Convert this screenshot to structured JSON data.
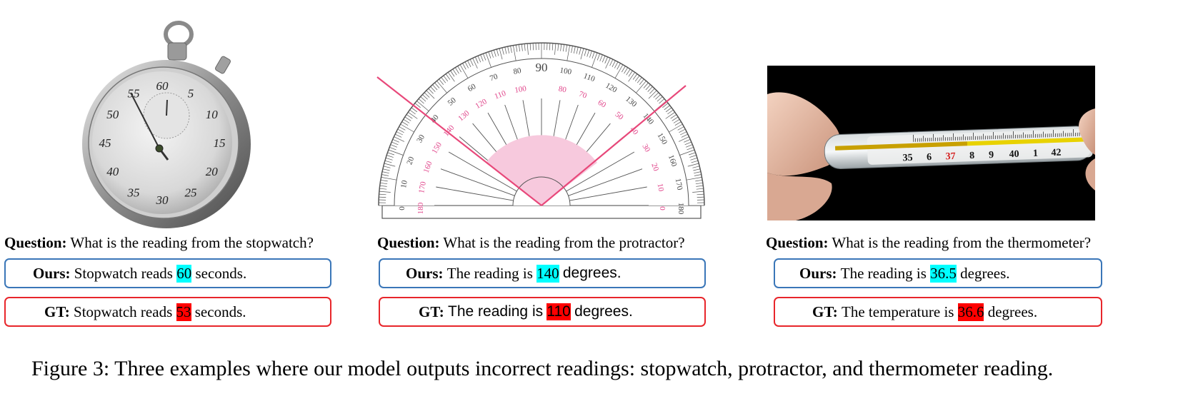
{
  "examples": [
    {
      "question_label": "Question:",
      "question": "What is the reading from the stopwatch?",
      "ours": {
        "label": "Ours:",
        "before": "Stopwatch reads",
        "value": "60",
        "after": "seconds."
      },
      "gt": {
        "label": "GT:",
        "before": "Stopwatch reads",
        "value": "53",
        "after": "seconds."
      },
      "dial_numbers": [
        "55",
        "60",
        "5",
        "10",
        "15",
        "20",
        "25",
        "30",
        "35",
        "40",
        "45",
        "50"
      ]
    },
    {
      "question_label": "Question:",
      "question": "What is the reading from the protractor?",
      "ours": {
        "label": "Ours:",
        "before": "The reading is",
        "value": "140",
        "after": "degrees."
      },
      "gt": {
        "label": "GT:",
        "before": "The reading is",
        "value": "110",
        "after": "degrees."
      },
      "scale_labels": [
        "0",
        "10",
        "20",
        "30",
        "40",
        "50",
        "60",
        "70",
        "80",
        "90",
        "100",
        "110",
        "120",
        "130",
        "140",
        "150",
        "160",
        "170",
        "180"
      ]
    },
    {
      "question_label": "Question:",
      "question": "What is the reading from the thermometer?",
      "ours": {
        "label": "Ours:",
        "before": "The reading is",
        "value": "36.5",
        "after": "degrees."
      },
      "gt": {
        "label": "GT:",
        "before": "The temperature is",
        "value": "36.6",
        "after": "degrees."
      },
      "scale_labels": [
        "35",
        "6",
        "37",
        "8",
        "9",
        "40",
        "1",
        "42"
      ]
    }
  ],
  "caption": "Figure 3: Three examples where our model outputs incorrect readings: stopwatch, protractor, and thermometer reading.",
  "colors": {
    "ours_border": "#3a76b8",
    "gt_border": "#e8262b",
    "ours_highlight": "#00ffff",
    "gt_highlight": "#ff0000"
  }
}
